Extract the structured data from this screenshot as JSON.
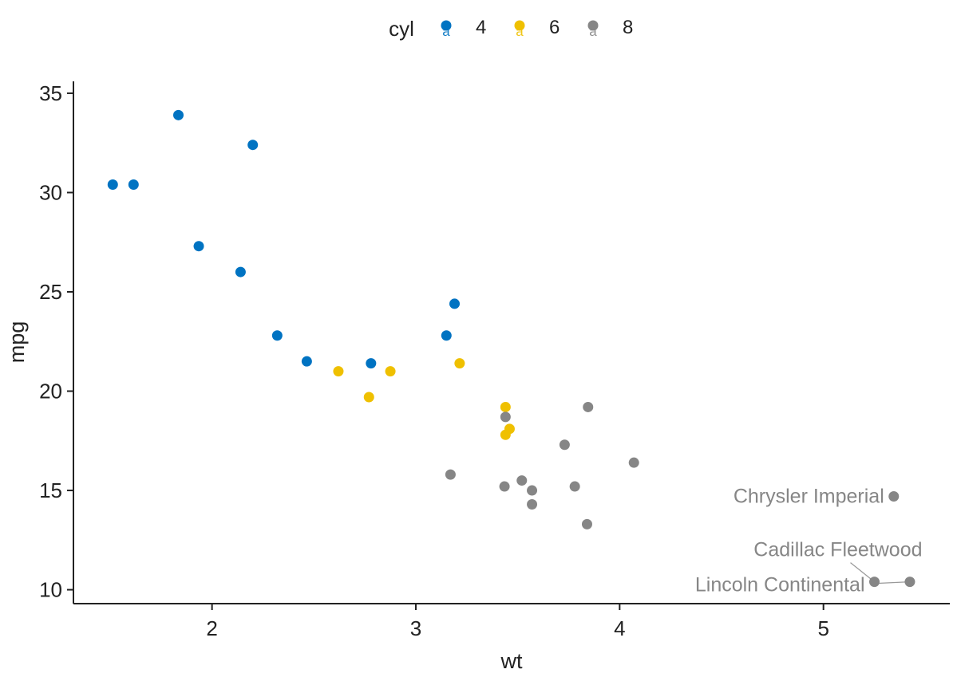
{
  "chart_data": {
    "type": "scatter",
    "xlabel": "wt",
    "ylabel": "mpg",
    "xlim": [
      1.32,
      5.62
    ],
    "ylim": [
      9.3,
      35.6
    ],
    "x_ticks": [
      "2",
      "3",
      "4",
      "5"
    ],
    "y_ticks": [
      "10",
      "15",
      "20",
      "25",
      "30",
      "35"
    ],
    "grid": false,
    "legend": {
      "position": "top",
      "title": "cyl",
      "glyph_letter": "a",
      "entries": [
        {
          "label": "4",
          "color": "#0073C2"
        },
        {
          "label": "6",
          "color": "#EFC000"
        },
        {
          "label": "8",
          "color": "#868686"
        }
      ]
    },
    "series": [
      {
        "name": "4",
        "color": "#0073C2",
        "points": [
          {
            "x": 1.513,
            "y": 30.4
          },
          {
            "x": 1.615,
            "y": 30.4
          },
          {
            "x": 1.835,
            "y": 33.9
          },
          {
            "x": 1.935,
            "y": 27.3
          },
          {
            "x": 2.14,
            "y": 26.0
          },
          {
            "x": 2.2,
            "y": 32.4
          },
          {
            "x": 2.32,
            "y": 22.8
          },
          {
            "x": 2.465,
            "y": 21.5
          },
          {
            "x": 2.78,
            "y": 21.4
          },
          {
            "x": 3.15,
            "y": 22.8
          },
          {
            "x": 3.19,
            "y": 24.4
          }
        ]
      },
      {
        "name": "6",
        "color": "#EFC000",
        "points": [
          {
            "x": 2.62,
            "y": 21.0
          },
          {
            "x": 2.77,
            "y": 19.7
          },
          {
            "x": 2.875,
            "y": 21.0
          },
          {
            "x": 3.215,
            "y": 21.4
          },
          {
            "x": 3.44,
            "y": 19.2
          },
          {
            "x": 3.44,
            "y": 17.8
          },
          {
            "x": 3.46,
            "y": 18.1
          }
        ]
      },
      {
        "name": "8",
        "color": "#868686",
        "points": [
          {
            "x": 3.17,
            "y": 15.8
          },
          {
            "x": 3.435,
            "y": 15.2
          },
          {
            "x": 3.44,
            "y": 18.7
          },
          {
            "x": 3.52,
            "y": 15.5
          },
          {
            "x": 3.57,
            "y": 14.3
          },
          {
            "x": 3.57,
            "y": 15.0
          },
          {
            "x": 3.73,
            "y": 17.3
          },
          {
            "x": 3.78,
            "y": 15.2
          },
          {
            "x": 3.84,
            "y": 13.3
          },
          {
            "x": 3.845,
            "y": 19.2
          },
          {
            "x": 4.07,
            "y": 16.4
          },
          {
            "x": 5.25,
            "y": 10.4
          },
          {
            "x": 5.345,
            "y": 14.7
          },
          {
            "x": 5.424,
            "y": 10.4
          }
        ]
      }
    ],
    "annotations": [
      {
        "text": "Chrysler Imperial",
        "x": 5.345,
        "y": 14.7,
        "color": "#868686"
      },
      {
        "text": "Cadillac Fleetwood",
        "x": 5.25,
        "y": 10.4,
        "color": "#868686"
      },
      {
        "text": "Lincoln Continental",
        "x": 5.424,
        "y": 10.4,
        "color": "#868686"
      }
    ]
  }
}
